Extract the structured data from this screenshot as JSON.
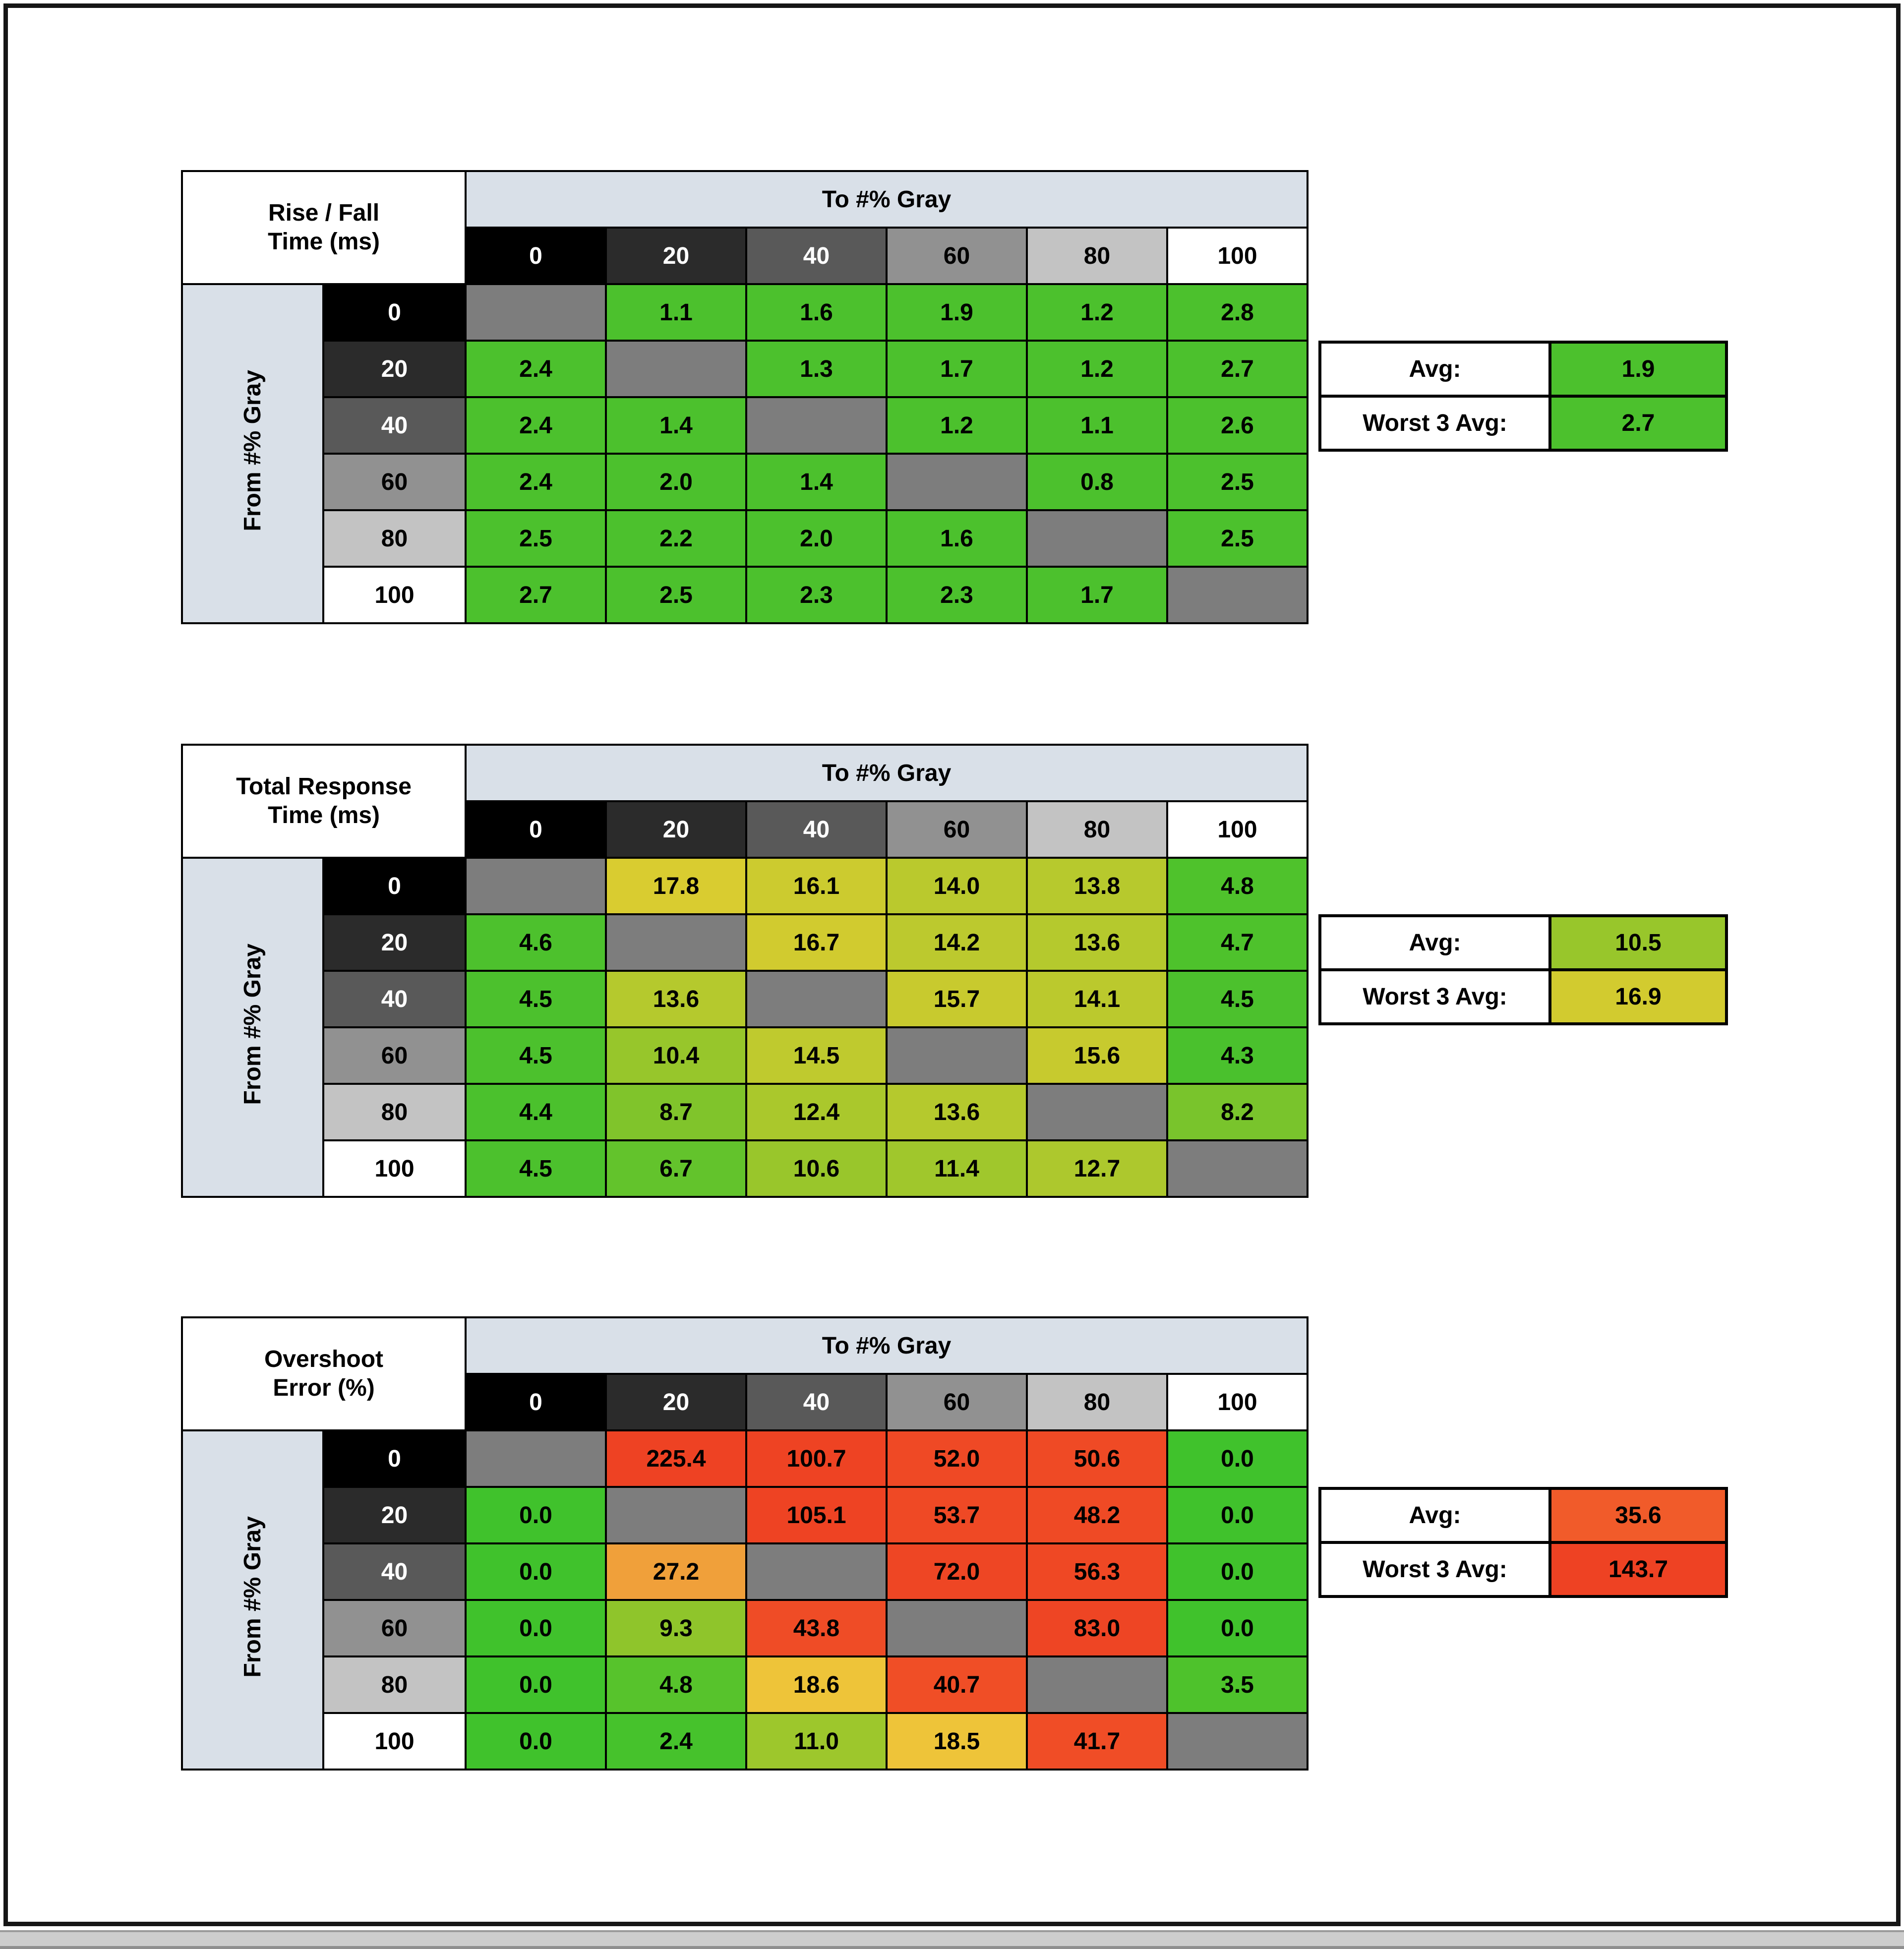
{
  "colors": {
    "page_bg": "#ffffff",
    "frame_border": "#161616",
    "header_blue": "#d9e0e8",
    "diagonal_gray": "#7d7d7d",
    "grid_line": "#000000",
    "bottom_bar_bg": "#cdcdcd"
  },
  "gray_scale": [
    {
      "label": "0",
      "bg": "#000000",
      "fg": "#ffffff"
    },
    {
      "label": "20",
      "bg": "#2b2b2b",
      "fg": "#ffffff"
    },
    {
      "label": "40",
      "bg": "#595959",
      "fg": "#ffffff"
    },
    {
      "label": "60",
      "bg": "#919191",
      "fg": "#000000"
    },
    {
      "label": "80",
      "bg": "#c3c3c3",
      "fg": "#000000"
    },
    {
      "label": "100",
      "bg": "#ffffff",
      "fg": "#000000"
    }
  ],
  "tables": [
    {
      "name": "rise-fall-time",
      "title1": "Rise / Fall",
      "title2": "Time (ms)",
      "col_axis_label": "To #% Gray",
      "row_axis_label": "From #% Gray",
      "rows": [
        {
          "label": "0",
          "cells": [
            null,
            {
              "v": "1.1",
              "c": "#4cc12d"
            },
            {
              "v": "1.6",
              "c": "#4cc12d"
            },
            {
              "v": "1.9",
              "c": "#4cc12d"
            },
            {
              "v": "1.2",
              "c": "#4cc12d"
            },
            {
              "v": "2.8",
              "c": "#4cc12d"
            }
          ]
        },
        {
          "label": "20",
          "cells": [
            {
              "v": "2.4",
              "c": "#4cc12d"
            },
            null,
            {
              "v": "1.3",
              "c": "#4cc12d"
            },
            {
              "v": "1.7",
              "c": "#4cc12d"
            },
            {
              "v": "1.2",
              "c": "#4cc12d"
            },
            {
              "v": "2.7",
              "c": "#4cc12d"
            }
          ]
        },
        {
          "label": "40",
          "cells": [
            {
              "v": "2.4",
              "c": "#4cc12d"
            },
            {
              "v": "1.4",
              "c": "#4cc12d"
            },
            null,
            {
              "v": "1.2",
              "c": "#4cc12d"
            },
            {
              "v": "1.1",
              "c": "#4cc12d"
            },
            {
              "v": "2.6",
              "c": "#4cc12d"
            }
          ]
        },
        {
          "label": "60",
          "cells": [
            {
              "v": "2.4",
              "c": "#4cc12d"
            },
            {
              "v": "2.0",
              "c": "#4cc12d"
            },
            {
              "v": "1.4",
              "c": "#4cc12d"
            },
            null,
            {
              "v": "0.8",
              "c": "#4cc12d"
            },
            {
              "v": "2.5",
              "c": "#4cc12d"
            }
          ]
        },
        {
          "label": "80",
          "cells": [
            {
              "v": "2.5",
              "c": "#4cc12d"
            },
            {
              "v": "2.2",
              "c": "#4cc12d"
            },
            {
              "v": "2.0",
              "c": "#4cc12d"
            },
            {
              "v": "1.6",
              "c": "#4cc12d"
            },
            null,
            {
              "v": "2.5",
              "c": "#4cc12d"
            }
          ]
        },
        {
          "label": "100",
          "cells": [
            {
              "v": "2.7",
              "c": "#4cc12d"
            },
            {
              "v": "2.5",
              "c": "#4cc12d"
            },
            {
              "v": "2.3",
              "c": "#4cc12d"
            },
            {
              "v": "2.3",
              "c": "#4cc12d"
            },
            {
              "v": "1.7",
              "c": "#4cc12d"
            },
            null
          ]
        }
      ],
      "avg": {
        "label": "Avg:",
        "value": "1.9",
        "color": "#4cc12d"
      },
      "worst": {
        "label": "Worst 3 Avg:",
        "value": "2.7",
        "color": "#4cc12d"
      }
    },
    {
      "name": "total-response-time",
      "title1": "Total Response",
      "title2": "Time (ms)",
      "col_axis_label": "To #% Gray",
      "row_axis_label": "From #% Gray",
      "rows": [
        {
          "label": "0",
          "cells": [
            null,
            {
              "v": "17.8",
              "c": "#d9cc30"
            },
            {
              "v": "16.1",
              "c": "#cccb2f"
            },
            {
              "v": "14.0",
              "c": "#bac92d"
            },
            {
              "v": "13.8",
              "c": "#b7c92d"
            },
            {
              "v": "4.8",
              "c": "#4fc22c"
            }
          ]
        },
        {
          "label": "20",
          "cells": [
            {
              "v": "4.6",
              "c": "#4dc12d"
            },
            null,
            {
              "v": "16.7",
              "c": "#d1cb2f"
            },
            {
              "v": "14.2",
              "c": "#bcc92e"
            },
            {
              "v": "13.6",
              "c": "#b5c92d"
            },
            {
              "v": "4.7",
              "c": "#4ec22c"
            }
          ]
        },
        {
          "label": "40",
          "cells": [
            {
              "v": "4.5",
              "c": "#4cc12d"
            },
            {
              "v": "13.6",
              "c": "#b5c92d"
            },
            null,
            {
              "v": "15.7",
              "c": "#c8ca2e"
            },
            {
              "v": "14.1",
              "c": "#bbc92d"
            },
            {
              "v": "4.5",
              "c": "#4cc12d"
            }
          ]
        },
        {
          "label": "60",
          "cells": [
            {
              "v": "4.5",
              "c": "#4cc12d"
            },
            {
              "v": "10.4",
              "c": "#97c62b"
            },
            {
              "v": "14.5",
              "c": "#bfca2e"
            },
            null,
            {
              "v": "15.6",
              "c": "#c7ca2e"
            },
            {
              "v": "4.3",
              "c": "#4ac12d"
            }
          ]
        },
        {
          "label": "80",
          "cells": [
            {
              "v": "4.4",
              "c": "#4bc12d"
            },
            {
              "v": "8.7",
              "c": "#80c42b"
            },
            {
              "v": "12.4",
              "c": "#aac82c"
            },
            {
              "v": "13.6",
              "c": "#b5c92d"
            },
            null,
            {
              "v": "8.2",
              "c": "#79c42c"
            }
          ]
        },
        {
          "label": "100",
          "cells": [
            {
              "v": "4.5",
              "c": "#4cc12d"
            },
            {
              "v": "6.7",
              "c": "#63c32c"
            },
            {
              "v": "10.6",
              "c": "#99c62b"
            },
            {
              "v": "11.4",
              "c": "#a0c72c"
            },
            {
              "v": "12.7",
              "c": "#adc82d"
            },
            null
          ]
        }
      ],
      "avg": {
        "label": "Avg:",
        "value": "10.5",
        "color": "#98c62b"
      },
      "worst": {
        "label": "Worst 3 Avg:",
        "value": "16.9",
        "color": "#d2cb2f"
      }
    },
    {
      "name": "overshoot-error",
      "title1": "Overshoot",
      "title2": "Error (%)",
      "col_axis_label": "To #% Gray",
      "row_axis_label": "From #% Gray",
      "rows": [
        {
          "label": "0",
          "cells": [
            null,
            {
              "v": "225.4",
              "c": "#ee4223"
            },
            {
              "v": "100.7",
              "c": "#ee4323"
            },
            {
              "v": "52.0",
              "c": "#ef4925"
            },
            {
              "v": "50.6",
              "c": "#ef4a25"
            },
            {
              "v": "0.0",
              "c": "#40c22c"
            }
          ]
        },
        {
          "label": "20",
          "cells": [
            {
              "v": "0.0",
              "c": "#40c22c"
            },
            null,
            {
              "v": "105.1",
              "c": "#ee4323"
            },
            {
              "v": "53.7",
              "c": "#ef4925"
            },
            {
              "v": "48.2",
              "c": "#ef4a25"
            },
            {
              "v": "0.0",
              "c": "#40c22c"
            }
          ]
        },
        {
          "label": "40",
          "cells": [
            {
              "v": "0.0",
              "c": "#40c22c"
            },
            {
              "v": "27.2",
              "c": "#f0a03a"
            },
            null,
            {
              "v": "72.0",
              "c": "#ee4624"
            },
            {
              "v": "56.3",
              "c": "#ef4824"
            },
            {
              "v": "0.0",
              "c": "#40c22c"
            }
          ]
        },
        {
          "label": "60",
          "cells": [
            {
              "v": "0.0",
              "c": "#40c22c"
            },
            {
              "v": "9.3",
              "c": "#8fc52b"
            },
            {
              "v": "43.8",
              "c": "#ef4c26"
            },
            null,
            {
              "v": "83.0",
              "c": "#ee4524"
            },
            {
              "v": "0.0",
              "c": "#40c22c"
            }
          ]
        },
        {
          "label": "80",
          "cells": [
            {
              "v": "0.0",
              "c": "#40c22c"
            },
            {
              "v": "4.8",
              "c": "#57c32c"
            },
            {
              "v": "18.6",
              "c": "#eec439"
            },
            {
              "v": "40.7",
              "c": "#f04e26"
            },
            null,
            {
              "v": "3.5",
              "c": "#4ec22c"
            }
          ]
        },
        {
          "label": "100",
          "cells": [
            {
              "v": "0.0",
              "c": "#40c22c"
            },
            {
              "v": "2.4",
              "c": "#46c22c"
            },
            {
              "v": "11.0",
              "c": "#9dc72c"
            },
            {
              "v": "18.5",
              "c": "#eec439"
            },
            {
              "v": "41.7",
              "c": "#f04d26"
            },
            null
          ]
        }
      ],
      "avg": {
        "label": "Avg:",
        "value": "35.6",
        "color": "#f15b2a"
      },
      "worst": {
        "label": "Worst 3 Avg:",
        "value": "143.7",
        "color": "#ee4223"
      }
    }
  ],
  "chart_data": [
    {
      "type": "heatmap",
      "title": "Rise / Fall Time (ms)",
      "xlabel": "To #% Gray",
      "ylabel": "From #% Gray",
      "x_categories": [
        "0",
        "20",
        "40",
        "60",
        "80",
        "100"
      ],
      "y_categories": [
        "0",
        "20",
        "40",
        "60",
        "80",
        "100"
      ],
      "values": [
        [
          null,
          1.1,
          1.6,
          1.9,
          1.2,
          2.8
        ],
        [
          2.4,
          null,
          1.3,
          1.7,
          1.2,
          2.7
        ],
        [
          2.4,
          1.4,
          null,
          1.2,
          1.1,
          2.6
        ],
        [
          2.4,
          2.0,
          1.4,
          null,
          0.8,
          2.5
        ],
        [
          2.5,
          2.2,
          2.0,
          1.6,
          null,
          2.5
        ],
        [
          2.7,
          2.5,
          2.3,
          2.3,
          1.7,
          null
        ]
      ],
      "avg": 1.9,
      "worst_3_avg": 2.7
    },
    {
      "type": "heatmap",
      "title": "Total Response Time (ms)",
      "xlabel": "To #% Gray",
      "ylabel": "From #% Gray",
      "x_categories": [
        "0",
        "20",
        "40",
        "60",
        "80",
        "100"
      ],
      "y_categories": [
        "0",
        "20",
        "40",
        "60",
        "80",
        "100"
      ],
      "values": [
        [
          null,
          17.8,
          16.1,
          14.0,
          13.8,
          4.8
        ],
        [
          4.6,
          null,
          16.7,
          14.2,
          13.6,
          4.7
        ],
        [
          4.5,
          13.6,
          null,
          15.7,
          14.1,
          4.5
        ],
        [
          4.5,
          10.4,
          14.5,
          null,
          15.6,
          4.3
        ],
        [
          4.4,
          8.7,
          12.4,
          13.6,
          null,
          8.2
        ],
        [
          4.5,
          6.7,
          10.6,
          11.4,
          12.7,
          null
        ]
      ],
      "avg": 10.5,
      "worst_3_avg": 16.9
    },
    {
      "type": "heatmap",
      "title": "Overshoot Error (%)",
      "xlabel": "To #% Gray",
      "ylabel": "From #% Gray",
      "x_categories": [
        "0",
        "20",
        "40",
        "60",
        "80",
        "100"
      ],
      "y_categories": [
        "0",
        "20",
        "40",
        "60",
        "80",
        "100"
      ],
      "values": [
        [
          null,
          225.4,
          100.7,
          52.0,
          50.6,
          0.0
        ],
        [
          0.0,
          null,
          105.1,
          53.7,
          48.2,
          0.0
        ],
        [
          0.0,
          27.2,
          null,
          72.0,
          56.3,
          0.0
        ],
        [
          0.0,
          9.3,
          43.8,
          null,
          83.0,
          0.0
        ],
        [
          0.0,
          4.8,
          18.6,
          40.7,
          null,
          3.5
        ],
        [
          0.0,
          2.4,
          11.0,
          18.5,
          41.7,
          null
        ]
      ],
      "avg": 35.6,
      "worst_3_avg": 143.7
    }
  ]
}
